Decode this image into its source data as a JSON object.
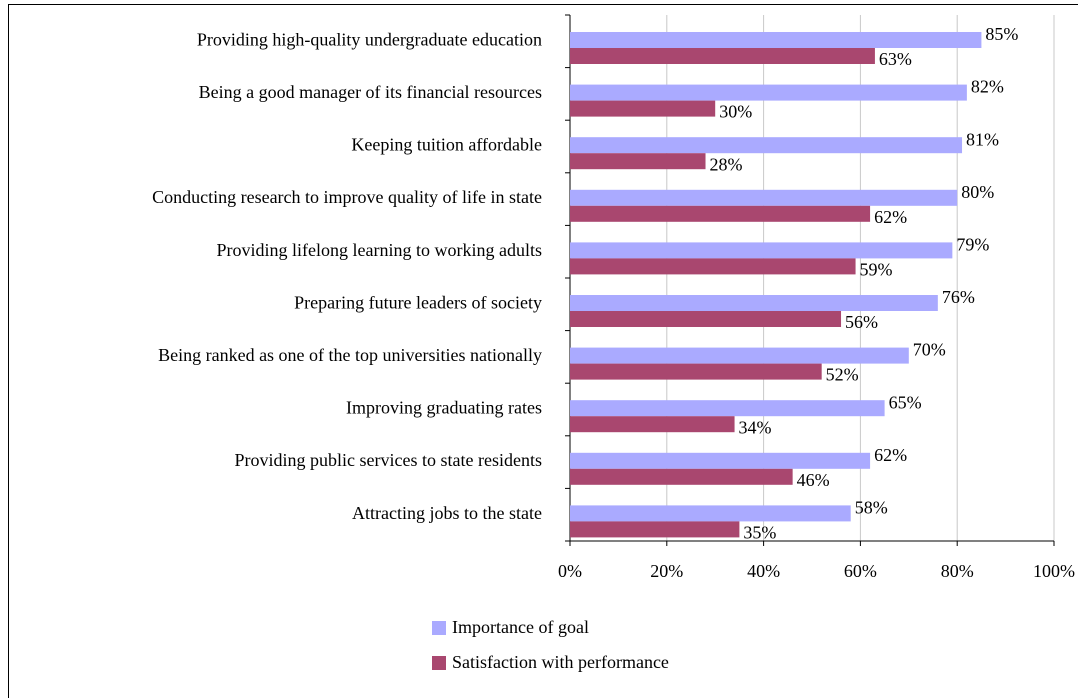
{
  "chart_data": {
    "type": "bar",
    "orientation": "horizontal",
    "categories": [
      "Providing high-quality undergraduate education",
      "Being a good manager of its financial resources",
      "Keeping tuition affordable",
      "Conducting research to improve quality of life in state",
      "Providing lifelong learning to working adults",
      "Preparing future leaders of society",
      "Being ranked as one of the top universities nationally",
      "Improving graduating rates",
      "Providing public services to state residents",
      "Attracting jobs to the state"
    ],
    "series": [
      {
        "name": "Importance of goal",
        "color": "#aaaaff",
        "values": [
          85,
          82,
          81,
          80,
          79,
          76,
          70,
          65,
          62,
          58
        ],
        "value_labels": [
          "85%",
          "82%",
          "81%",
          "80%",
          "79%",
          "76%",
          "70%",
          "65%",
          "62%",
          "58%"
        ]
      },
      {
        "name": "Satisfaction with performance",
        "color": "#a9476f",
        "values": [
          63,
          30,
          28,
          62,
          59,
          56,
          52,
          34,
          46,
          35
        ],
        "value_labels": [
          "63%",
          "30%",
          "28%",
          "62%",
          "59%",
          "56%",
          "52%",
          "34%",
          "46%",
          "35%"
        ]
      }
    ],
    "xlim": [
      0,
      100
    ],
    "xticks": [
      {
        "value": 0,
        "label": "0%"
      },
      {
        "value": 20,
        "label": "20%"
      },
      {
        "value": 40,
        "label": "40%"
      },
      {
        "value": 60,
        "label": "60%"
      },
      {
        "value": 80,
        "label": "80%"
      },
      {
        "value": 100,
        "label": "100%"
      }
    ],
    "grid": true
  }
}
